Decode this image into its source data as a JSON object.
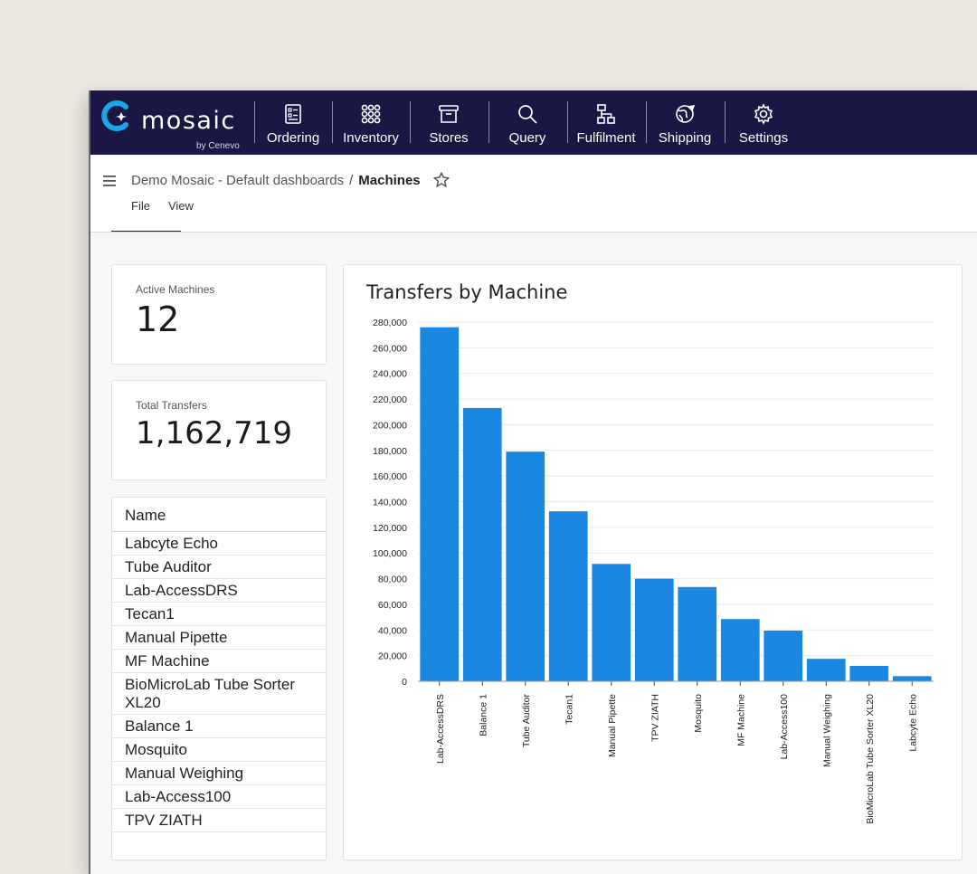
{
  "app": {
    "logo_text": "mosaic",
    "logo_sub": "by Cenevo"
  },
  "nav": {
    "items": [
      {
        "label": "Ordering",
        "icon": "ordering-icon"
      },
      {
        "label": "Inventory",
        "icon": "inventory-icon"
      },
      {
        "label": "Stores",
        "icon": "stores-icon"
      },
      {
        "label": "Query",
        "icon": "search-icon"
      },
      {
        "label": "Fulfilment",
        "icon": "fulfilment-icon"
      },
      {
        "label": "Shipping",
        "icon": "shipping-icon"
      },
      {
        "label": "Settings",
        "icon": "gear-icon"
      }
    ]
  },
  "breadcrumb": {
    "parent": "Demo Mosaic - Default dashboards",
    "separator": "/",
    "current": "Machines"
  },
  "menu": {
    "file": "File",
    "view": "View"
  },
  "kpis": {
    "active_label": "Active Machines",
    "active_value": "12",
    "transfers_label": "Total Transfers",
    "transfers_value": "1,162,719"
  },
  "machine_list": {
    "header": "Name",
    "items": [
      "Labcyte Echo",
      "Tube Auditor",
      "Lab-AccessDRS",
      "Tecan1",
      "Manual Pipette",
      "MF Machine",
      "BioMicroLab Tube Sorter XL20",
      "Balance 1",
      "Mosquito",
      "Manual Weighing",
      "Lab-Access100",
      "TPV ZIATH"
    ]
  },
  "colors": {
    "nav_bg": "#1a1744",
    "bar": "#1a87e0",
    "logo_accent": "#1aa7e8"
  },
  "chart_data": {
    "type": "bar",
    "title": "Transfers by Machine",
    "categories": [
      "Lab-AccessDRS",
      "Balance 1",
      "Tube Auditor",
      "Tecan1",
      "Manual Pipette",
      "TPV ZIATH",
      "Mosquito",
      "MF Machine",
      "Lab-Access100",
      "Manual Weighing",
      "BioMicroLab Tube Sorter XL20",
      "Labcyte Echo"
    ],
    "values": [
      276000,
      213000,
      179000,
      132500,
      91500,
      80000,
      73500,
      48500,
      39500,
      17500,
      12000,
      4000
    ],
    "ylim": [
      0,
      280000
    ],
    "yticks": [
      0,
      20000,
      40000,
      60000,
      80000,
      100000,
      120000,
      140000,
      160000,
      180000,
      200000,
      220000,
      240000,
      260000,
      280000
    ],
    "ytick_labels": [
      "0",
      "20,000",
      "40,000",
      "60,000",
      "80,000",
      "100,000",
      "120,000",
      "140,000",
      "160,000",
      "180,000",
      "200,000",
      "220,000",
      "240,000",
      "260,000",
      "280,000"
    ],
    "grid": true,
    "legend": "none"
  }
}
